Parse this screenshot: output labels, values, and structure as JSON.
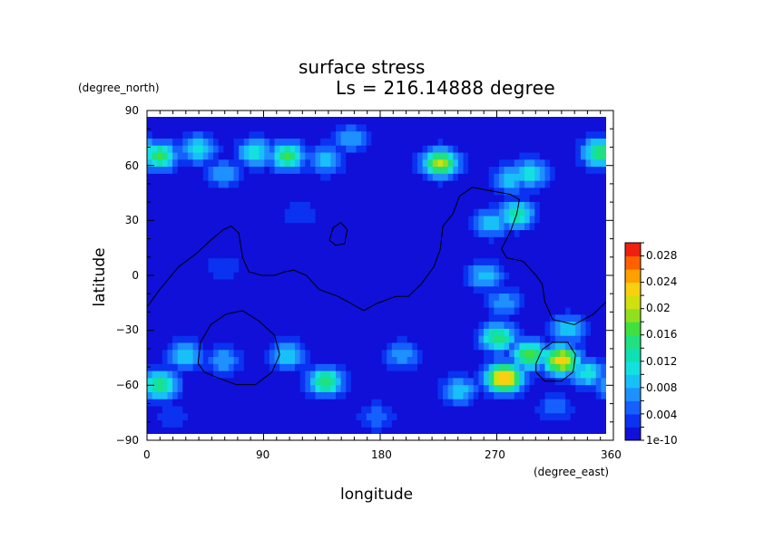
{
  "chart_data": {
    "type": "heatmap",
    "title": "surface stress",
    "subtitle": "Ls = 216.14888 degree",
    "xlabel": "longitude",
    "ylabel": "latitude",
    "x_units": "(degree_east)",
    "y_units": "(degree_north)",
    "xlim": [
      0,
      360
    ],
    "ylim": [
      -90,
      90
    ],
    "x_ticks": [
      "0",
      "90",
      "180",
      "270",
      "360"
    ],
    "y_ticks": [
      "90",
      "60",
      "30",
      "0",
      "−30",
      "−60",
      "−90"
    ],
    "colorbar": {
      "labels": [
        "0.028",
        "0.024",
        "0.02",
        "0.016",
        "0.012",
        "0.008",
        "0.004",
        "1e-10"
      ],
      "levels": [
        1e-10,
        0.002,
        0.004,
        0.006,
        0.008,
        0.01,
        0.012,
        0.014,
        0.016,
        0.018,
        0.02,
        0.022,
        0.024,
        0.026,
        0.028,
        0.03
      ],
      "colors": [
        "#1010d8",
        "#0a32f0",
        "#1560ff",
        "#1f90ff",
        "#18c0f8",
        "#14e0e0",
        "#10e0b0",
        "#20e080",
        "#40e040",
        "#90e020",
        "#d0e010",
        "#f8d010",
        "#ffa000",
        "#ff6000",
        "#f02010"
      ]
    },
    "field_features": [
      {
        "lon": 10,
        "lat": 68,
        "value": 0.016
      },
      {
        "lon": 40,
        "lat": 72,
        "value": 0.012
      },
      {
        "lon": 110,
        "lat": 68,
        "value": 0.016
      },
      {
        "lon": 85,
        "lat": 70,
        "value": 0.012
      },
      {
        "lon": 140,
        "lat": 66,
        "value": 0.01
      },
      {
        "lon": 160,
        "lat": 78,
        "value": 0.008
      },
      {
        "lon": 230,
        "lat": 64,
        "value": 0.02
      },
      {
        "lon": 285,
        "lat": 55,
        "value": 0.01
      },
      {
        "lon": 300,
        "lat": 58,
        "value": 0.012
      },
      {
        "lon": 355,
        "lat": 70,
        "value": 0.016
      },
      {
        "lon": 60,
        "lat": 58,
        "value": 0.008
      },
      {
        "lon": 270,
        "lat": 30,
        "value": 0.01
      },
      {
        "lon": 290,
        "lat": 35,
        "value": 0.014
      },
      {
        "lon": 265,
        "lat": 0,
        "value": 0.01
      },
      {
        "lon": 280,
        "lat": -15,
        "value": 0.008
      },
      {
        "lon": 60,
        "lat": 5,
        "value": 0.004
      },
      {
        "lon": 120,
        "lat": 35,
        "value": 0.004
      },
      {
        "lon": 30,
        "lat": -45,
        "value": 0.01
      },
      {
        "lon": 60,
        "lat": -48,
        "value": 0.008
      },
      {
        "lon": 110,
        "lat": -45,
        "value": 0.01
      },
      {
        "lon": 140,
        "lat": -60,
        "value": 0.016
      },
      {
        "lon": 10,
        "lat": -62,
        "value": 0.016
      },
      {
        "lon": 200,
        "lat": -45,
        "value": 0.008
      },
      {
        "lon": 245,
        "lat": -65,
        "value": 0.01
      },
      {
        "lon": 275,
        "lat": -35,
        "value": 0.016
      },
      {
        "lon": 280,
        "lat": -58,
        "value": 0.026
      },
      {
        "lon": 300,
        "lat": -45,
        "value": 0.018
      },
      {
        "lon": 325,
        "lat": -48,
        "value": 0.024
      },
      {
        "lon": 345,
        "lat": -55,
        "value": 0.012
      },
      {
        "lon": 330,
        "lat": -30,
        "value": 0.01
      },
      {
        "lon": 180,
        "lat": -80,
        "value": 0.006
      },
      {
        "lon": 20,
        "lat": -80,
        "value": 0.004
      },
      {
        "lon": 320,
        "lat": -75,
        "value": 0.006
      }
    ],
    "grid": false,
    "contours": [
      {
        "name": "dichotomy",
        "points": [
          [
            0,
            -18
          ],
          [
            10,
            -8
          ],
          [
            25,
            5
          ],
          [
            38,
            12
          ],
          [
            50,
            20
          ],
          [
            60,
            26
          ],
          [
            66,
            28
          ],
          [
            72,
            24
          ],
          [
            75,
            10
          ],
          [
            80,
            2
          ],
          [
            90,
            0
          ],
          [
            100,
            0
          ],
          [
            108,
            2
          ],
          [
            115,
            3
          ],
          [
            125,
            0
          ],
          [
            135,
            -8
          ],
          [
            150,
            -12
          ],
          [
            160,
            -16
          ],
          [
            170,
            -20
          ],
          [
            180,
            -16
          ],
          [
            195,
            -12
          ],
          [
            205,
            -12
          ],
          [
            215,
            -5
          ],
          [
            225,
            5
          ],
          [
            230,
            15
          ],
          [
            232,
            28
          ],
          [
            240,
            35
          ],
          [
            245,
            45
          ],
          [
            255,
            50
          ],
          [
            270,
            48
          ],
          [
            285,
            46
          ],
          [
            292,
            43
          ],
          [
            290,
            35
          ],
          [
            285,
            25
          ],
          [
            278,
            15
          ],
          [
            282,
            10
          ],
          [
            295,
            8
          ],
          [
            305,
            0
          ],
          [
            310,
            -5
          ],
          [
            312,
            -15
          ],
          [
            318,
            -25
          ],
          [
            335,
            -28
          ],
          [
            350,
            -22
          ],
          [
            360,
            -15
          ]
        ]
      },
      {
        "name": "hellas",
        "points": [
          [
            40,
            -50
          ],
          [
            42,
            -38
          ],
          [
            50,
            -28
          ],
          [
            62,
            -22
          ],
          [
            75,
            -20
          ],
          [
            88,
            -26
          ],
          [
            100,
            -34
          ],
          [
            104,
            -45
          ],
          [
            98,
            -55
          ],
          [
            85,
            -62
          ],
          [
            70,
            -62
          ],
          [
            55,
            -58
          ],
          [
            45,
            -55
          ],
          [
            40,
            -50
          ]
        ]
      },
      {
        "name": "argyre",
        "points": [
          [
            305,
            -50
          ],
          [
            310,
            -42
          ],
          [
            318,
            -38
          ],
          [
            330,
            -38
          ],
          [
            336,
            -45
          ],
          [
            334,
            -55
          ],
          [
            325,
            -60
          ],
          [
            312,
            -60
          ],
          [
            305,
            -55
          ],
          [
            305,
            -50
          ]
        ]
      },
      {
        "name": "crater",
        "points": [
          [
            143,
            20
          ],
          [
            146,
            27
          ],
          [
            152,
            30
          ],
          [
            157,
            26
          ],
          [
            155,
            18
          ],
          [
            148,
            17
          ],
          [
            143,
            20
          ]
        ]
      }
    ]
  }
}
